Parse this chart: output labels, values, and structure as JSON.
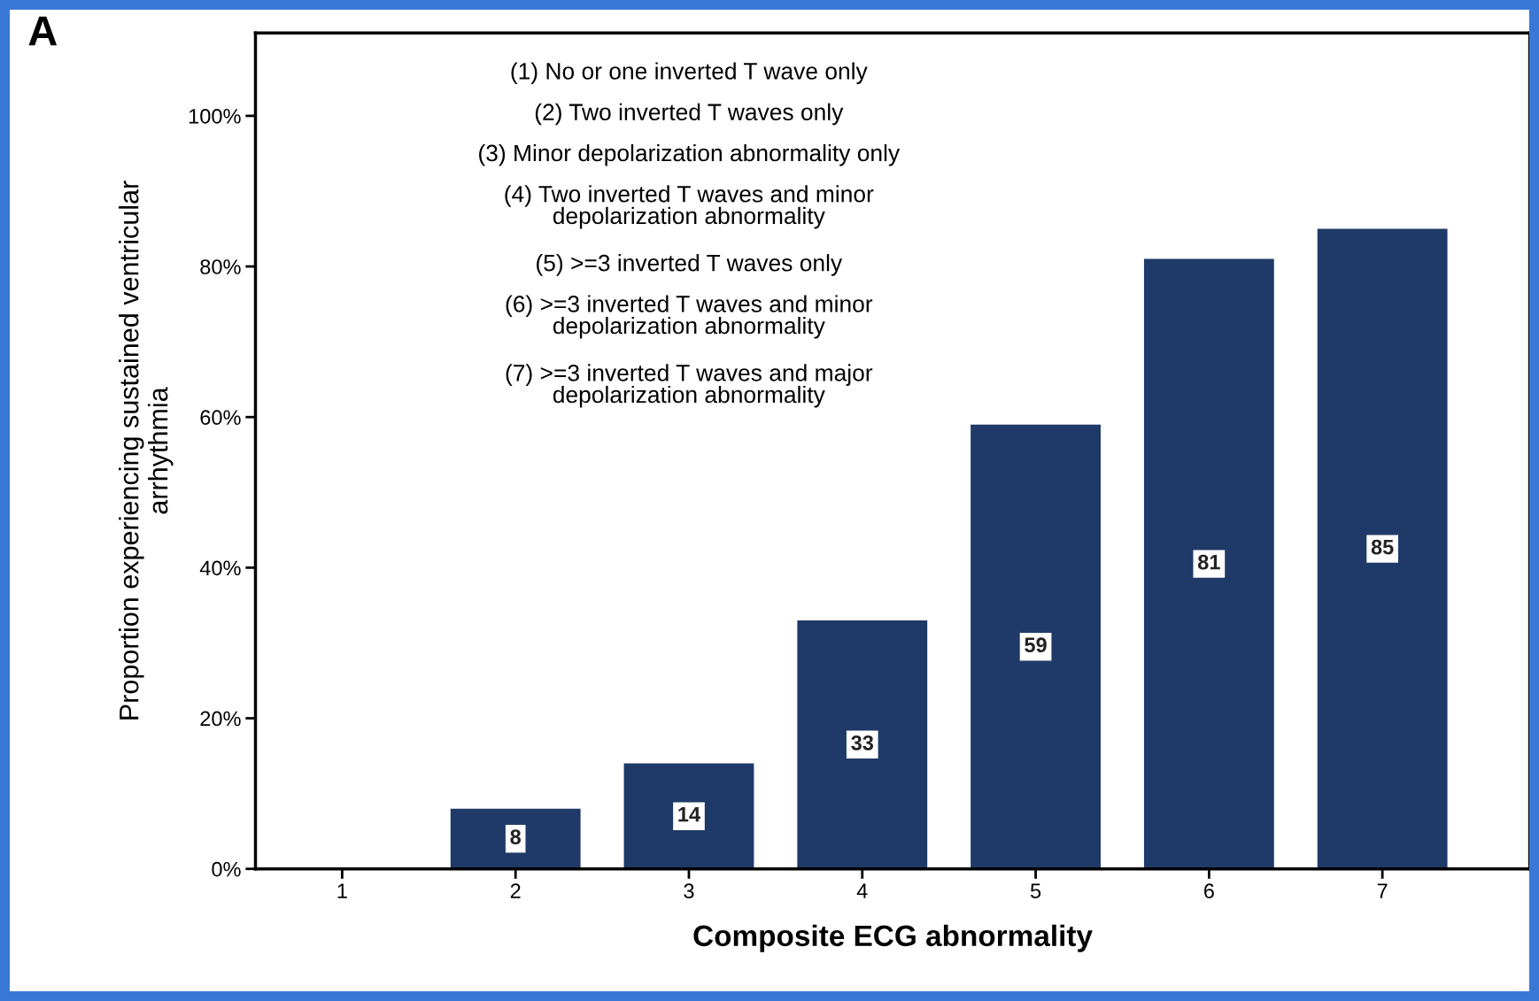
{
  "chart_data": {
    "type": "bar",
    "categories": [
      "1",
      "2",
      "3",
      "4",
      "5",
      "6",
      "7"
    ],
    "values": [
      0,
      8,
      14,
      33,
      59,
      81,
      85
    ],
    "value_labels": [
      null,
      "8",
      "14",
      "33",
      "59",
      "81",
      "85"
    ],
    "color": "#1f3a68",
    "xlabel": "Composite ECG abnormality",
    "ylabel": "Proportion experiencing sustained ventricular\narrhythmia",
    "ylim": [
      0,
      111
    ],
    "yticks": [
      {
        "value": 0,
        "label": "0%"
      },
      {
        "value": 20,
        "label": "20%"
      },
      {
        "value": 40,
        "label": "40%"
      },
      {
        "value": 60,
        "label": "60%"
      },
      {
        "value": 80,
        "label": "80%"
      },
      {
        "value": 100,
        "label": "100%"
      }
    ],
    "grid": false,
    "legend": false,
    "annotations": [
      "A",
      "(1) No or one inverted T wave only",
      "(2) Two inverted T waves only",
      "(3) Minor depolarization abnormality only",
      "(4) Two inverted T waves and minor\ndepolarization abnormality",
      "(5) >=3 inverted T waves only",
      "(6) >=3 inverted T waves and minor\ndepolarization abnormality",
      "(7) >=3 inverted T waves and major\ndepolarization abnormality"
    ]
  }
}
